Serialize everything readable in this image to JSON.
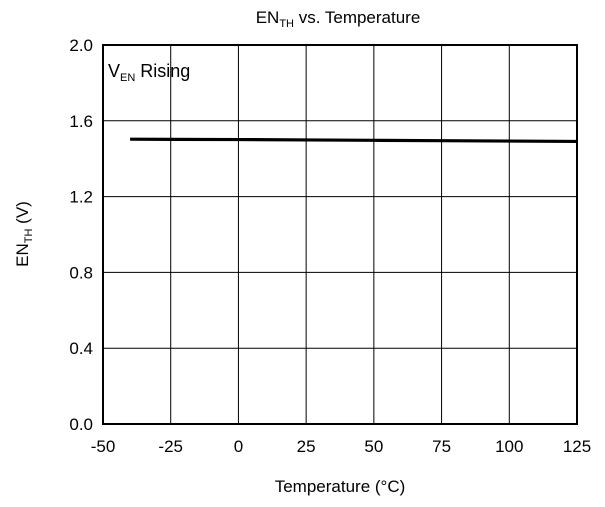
{
  "chart_data": {
    "type": "line",
    "title": {
      "main": "EN",
      "sub": "TH",
      "rest": " vs. Temperature"
    },
    "xlabel": "Temperature (°C)",
    "ylabel": {
      "main": "EN",
      "sub": "TH",
      "rest": " (V)"
    },
    "annotation": {
      "main": "V",
      "sub": "EN",
      "rest": " Rising",
      "placement": "top-left"
    },
    "xlim": [
      -50,
      125
    ],
    "ylim": [
      0,
      2
    ],
    "x_ticks": [
      "-50",
      "-25",
      "0",
      "25",
      "50",
      "75",
      "100",
      "125"
    ],
    "y_ticks": [
      "0.0",
      "0.4",
      "0.8",
      "1.2",
      "1.6",
      "2.0"
    ],
    "grid": true,
    "series": [
      {
        "x": [
          -40,
          -25,
          0,
          25,
          50,
          75,
          100,
          125
        ],
        "y": [
          1.503,
          1.502,
          1.501,
          1.499,
          1.497,
          1.495,
          1.493,
          1.491
        ],
        "color": "#000000"
      }
    ]
  }
}
